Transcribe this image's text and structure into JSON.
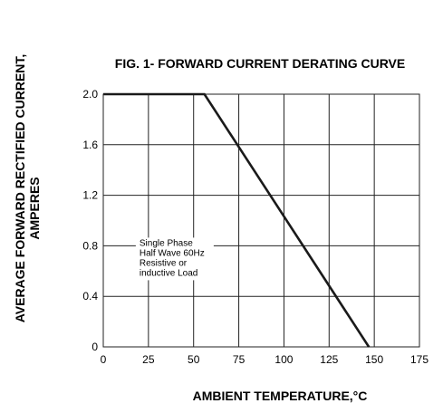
{
  "chart_data": {
    "type": "line",
    "title": "FIG. 1- FORWARD CURRENT DERATING CURVE",
    "xlabel": "AMBIENT TEMPERATURE,°C",
    "ylabel_lines": [
      "AVERAGE FORWARD RECTIFIED CURRENT,",
      "AMPERES"
    ],
    "xlim": [
      0,
      175
    ],
    "ylim": [
      0,
      2.0
    ],
    "x_ticks": [
      0,
      25,
      50,
      75,
      100,
      125,
      150,
      175
    ],
    "x_tick_labels": [
      "0",
      "25",
      "50",
      "75",
      "100",
      "125",
      "150",
      "175"
    ],
    "y_ticks": [
      0,
      0.4,
      0.8,
      1.2,
      1.6,
      2.0
    ],
    "y_tick_labels": [
      "0",
      "0.4",
      "0.8",
      "1.2",
      "1.6",
      "2.0"
    ],
    "grid": true,
    "series": [
      {
        "x": [
          0,
          56,
          147
        ],
        "y": [
          2.0,
          2.0,
          0
        ]
      }
    ],
    "annotation": {
      "lines": [
        "Single Phase",
        "Half Wave 60Hz",
        "Resistive or",
        "inductive Load"
      ],
      "x": 20,
      "y": 0.8
    },
    "colors": {
      "line": "#1a1a1a",
      "grid": "#222222"
    }
  }
}
